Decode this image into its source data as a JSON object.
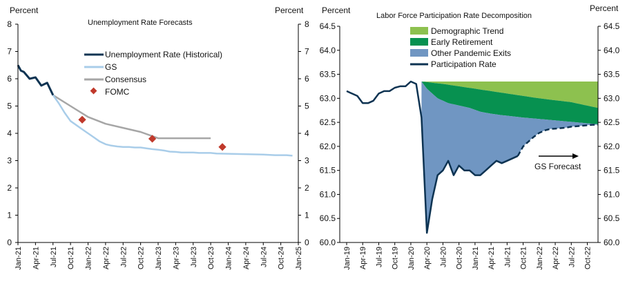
{
  "chart_data": [
    {
      "type": "line",
      "title": "Unemployment Rate Forecasts",
      "ylabel_left": "Percent",
      "ylabel_right": "Percent",
      "ylim": [
        0,
        8
      ],
      "y_ticks": [
        0,
        1,
        2,
        3,
        4,
        5,
        6,
        7,
        8
      ],
      "x_ticks": [
        "Jan-21",
        "Apr-21",
        "Jul-21",
        "Oct-21",
        "Jan-22",
        "Apr-22",
        "Jul-22",
        "Oct-22",
        "Jan-23",
        "Apr-23",
        "Jul-23",
        "Oct-23",
        "Jan-24",
        "Apr-24",
        "Jul-24",
        "Oct-24",
        "Jan-25"
      ],
      "x_range_months": [
        0,
        48
      ],
      "legend": [
        "Unemployment Rate (Historical)",
        "GS",
        "Consensus",
        "FOMC"
      ],
      "series": [
        {
          "name": "Unemployment Rate (Historical)",
          "color": "#0d3352",
          "points": [
            [
              0,
              6.5
            ],
            [
              0.5,
              6.3
            ],
            [
              1,
              6.25
            ],
            [
              2,
              6.0
            ],
            [
              3,
              6.05
            ],
            [
              4,
              5.75
            ],
            [
              5,
              5.85
            ],
            [
              6,
              5.4
            ]
          ]
        },
        {
          "name": "GS",
          "color": "#a9cde9",
          "points": [
            [
              6,
              5.4
            ],
            [
              7,
              5.1
            ],
            [
              8,
              4.75
            ],
            [
              9,
              4.45
            ],
            [
              10,
              4.3
            ],
            [
              11,
              4.15
            ],
            [
              12,
              4.0
            ],
            [
              13,
              3.85
            ],
            [
              14,
              3.7
            ],
            [
              15,
              3.6
            ],
            [
              16,
              3.55
            ],
            [
              17,
              3.52
            ],
            [
              18,
              3.5
            ],
            [
              19,
              3.5
            ],
            [
              20,
              3.48
            ],
            [
              21,
              3.48
            ],
            [
              22,
              3.45
            ],
            [
              23,
              3.42
            ],
            [
              24,
              3.4
            ],
            [
              25,
              3.37
            ],
            [
              26,
              3.33
            ],
            [
              27,
              3.32
            ],
            [
              28,
              3.3
            ],
            [
              29,
              3.3
            ],
            [
              30,
              3.3
            ],
            [
              31,
              3.28
            ],
            [
              32,
              3.28
            ],
            [
              33,
              3.28
            ],
            [
              34,
              3.26
            ],
            [
              36,
              3.25
            ],
            [
              38,
              3.24
            ],
            [
              40,
              3.23
            ],
            [
              42,
              3.22
            ],
            [
              44,
              3.2
            ],
            [
              46,
              3.2
            ],
            [
              47,
              3.18
            ]
          ]
        },
        {
          "name": "Consensus",
          "color": "#a6a6a6",
          "points": [
            [
              6,
              5.4
            ],
            [
              9,
              5.0
            ],
            [
              12,
              4.6
            ],
            [
              15,
              4.35
            ],
            [
              18,
              4.2
            ],
            [
              21,
              4.05
            ],
            [
              24,
              3.82
            ],
            [
              27,
              3.82
            ],
            [
              30,
              3.82
            ],
            [
              33,
              3.82
            ]
          ]
        },
        {
          "name": "FOMC",
          "color": "#c0392b",
          "marker": "diamond",
          "points": [
            [
              11,
              4.5
            ],
            [
              23,
              3.8
            ],
            [
              35,
              3.5
            ]
          ]
        }
      ]
    },
    {
      "type": "area",
      "title": "Labor Force Participation Rate Decomposition",
      "ylabel_left": "Percent",
      "ylabel_right": "Percent",
      "ylim": [
        60.0,
        64.5
      ],
      "y_ticks": [
        "60.0",
        "60.5",
        "61.0",
        "61.5",
        "62.0",
        "62.5",
        "63.0",
        "63.5",
        "64.0",
        "64.5"
      ],
      "x_ticks": [
        "Jan-19",
        "Apr-19",
        "Jul-19",
        "Oct-19",
        "Jan-20",
        "Apr-20",
        "Jul-20",
        "Oct-20",
        "Jan-21",
        "Apr-21",
        "Jul-21",
        "Oct-21",
        "Jan-22",
        "Apr-22",
        "Jul-22",
        "Oct-22"
      ],
      "x_range_months": [
        0,
        47
      ],
      "legend": [
        "Demographic Trend",
        "Early Retirement",
        "Other Pandemic Exits",
        "Participation Rate"
      ],
      "annotation": "GS Forecast",
      "upper_bound": 63.35,
      "series": [
        {
          "name": "Demographic Trend",
          "color": "#8dc14f",
          "lower": [
            [
              14,
              63.35
            ],
            [
              18,
              63.3
            ],
            [
              24,
              63.2
            ],
            [
              30,
              63.1
            ],
            [
              36,
              63.0
            ],
            [
              42,
              62.92
            ],
            [
              47,
              62.8
            ]
          ]
        },
        {
          "name": "Early Retirement",
          "color": "#079150",
          "lower": [
            [
              14,
              63.35
            ],
            [
              15,
              63.2
            ],
            [
              17,
              63.0
            ],
            [
              19,
              62.9
            ],
            [
              21,
              62.85
            ],
            [
              23,
              62.8
            ],
            [
              25,
              62.72
            ],
            [
              27,
              62.68
            ],
            [
              29,
              62.65
            ],
            [
              33,
              62.6
            ],
            [
              36,
              62.57
            ],
            [
              39,
              62.54
            ],
            [
              42,
              62.51
            ],
            [
              45,
              62.48
            ],
            [
              47,
              62.46
            ]
          ]
        },
        {
          "name": "Other Pandemic Exits",
          "color": "#7096c2"
        },
        {
          "name": "Participation Rate",
          "color": "#0d3352",
          "actual": [
            [
              0,
              63.15
            ],
            [
              1,
              63.1
            ],
            [
              2,
              63.05
            ],
            [
              3,
              62.9
            ],
            [
              4,
              62.9
            ],
            [
              5,
              62.95
            ],
            [
              6,
              63.1
            ],
            [
              7,
              63.15
            ],
            [
              8,
              63.15
            ],
            [
              9,
              63.22
            ],
            [
              10,
              63.25
            ],
            [
              11,
              63.25
            ],
            [
              12,
              63.35
            ],
            [
              13,
              63.3
            ],
            [
              14,
              62.6
            ],
            [
              15,
              60.2
            ],
            [
              16,
              60.9
            ],
            [
              17,
              61.4
            ],
            [
              18,
              61.5
            ],
            [
              19,
              61.7
            ],
            [
              20,
              61.4
            ],
            [
              21,
              61.6
            ],
            [
              22,
              61.5
            ],
            [
              23,
              61.5
            ],
            [
              24,
              61.4
            ],
            [
              25,
              61.4
            ],
            [
              26,
              61.5
            ],
            [
              27,
              61.6
            ],
            [
              28,
              61.7
            ],
            [
              29,
              61.65
            ],
            [
              30,
              61.7
            ],
            [
              31,
              61.75
            ],
            [
              32,
              61.8
            ]
          ],
          "forecast": [
            [
              32,
              61.8
            ],
            [
              33,
              62.0
            ],
            [
              34,
              62.1
            ],
            [
              35,
              62.2
            ],
            [
              36,
              62.28
            ],
            [
              37,
              62.33
            ],
            [
              38,
              62.36
            ],
            [
              39,
              62.37
            ],
            [
              40,
              62.38
            ],
            [
              41,
              62.39
            ],
            [
              42,
              62.41
            ],
            [
              43,
              62.42
            ],
            [
              44,
              62.43
            ],
            [
              45,
              62.44
            ],
            [
              46,
              62.45
            ],
            [
              47,
              62.45
            ]
          ]
        }
      ]
    }
  ]
}
